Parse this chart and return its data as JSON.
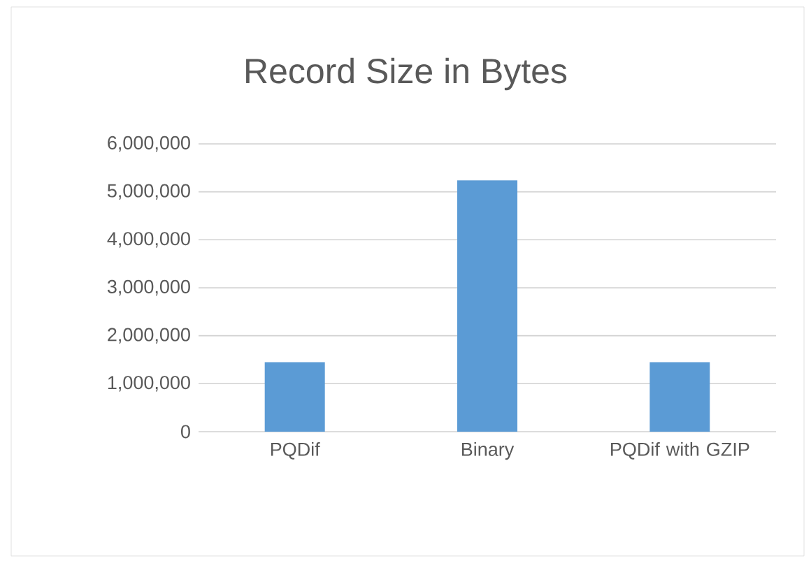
{
  "chart_data": {
    "type": "bar",
    "title": "Record Size in Bytes",
    "categories": [
      "PQDif",
      "Binary",
      "PQDif with GZIP"
    ],
    "values": [
      1450000,
      5240000,
      1450000
    ],
    "color": "#5b9bd5",
    "ylim": [
      0,
      6000000
    ],
    "yticks": [
      {
        "value": 0,
        "label": "0"
      },
      {
        "value": 1000000,
        "label": "1,000,000"
      },
      {
        "value": 2000000,
        "label": "2,000,000"
      },
      {
        "value": 3000000,
        "label": "3,000,000"
      },
      {
        "value": 4000000,
        "label": "4,000,000"
      },
      {
        "value": 5000000,
        "label": "5,000,000"
      },
      {
        "value": 6000000,
        "label": "6,000,000"
      }
    ],
    "grid": "y"
  }
}
